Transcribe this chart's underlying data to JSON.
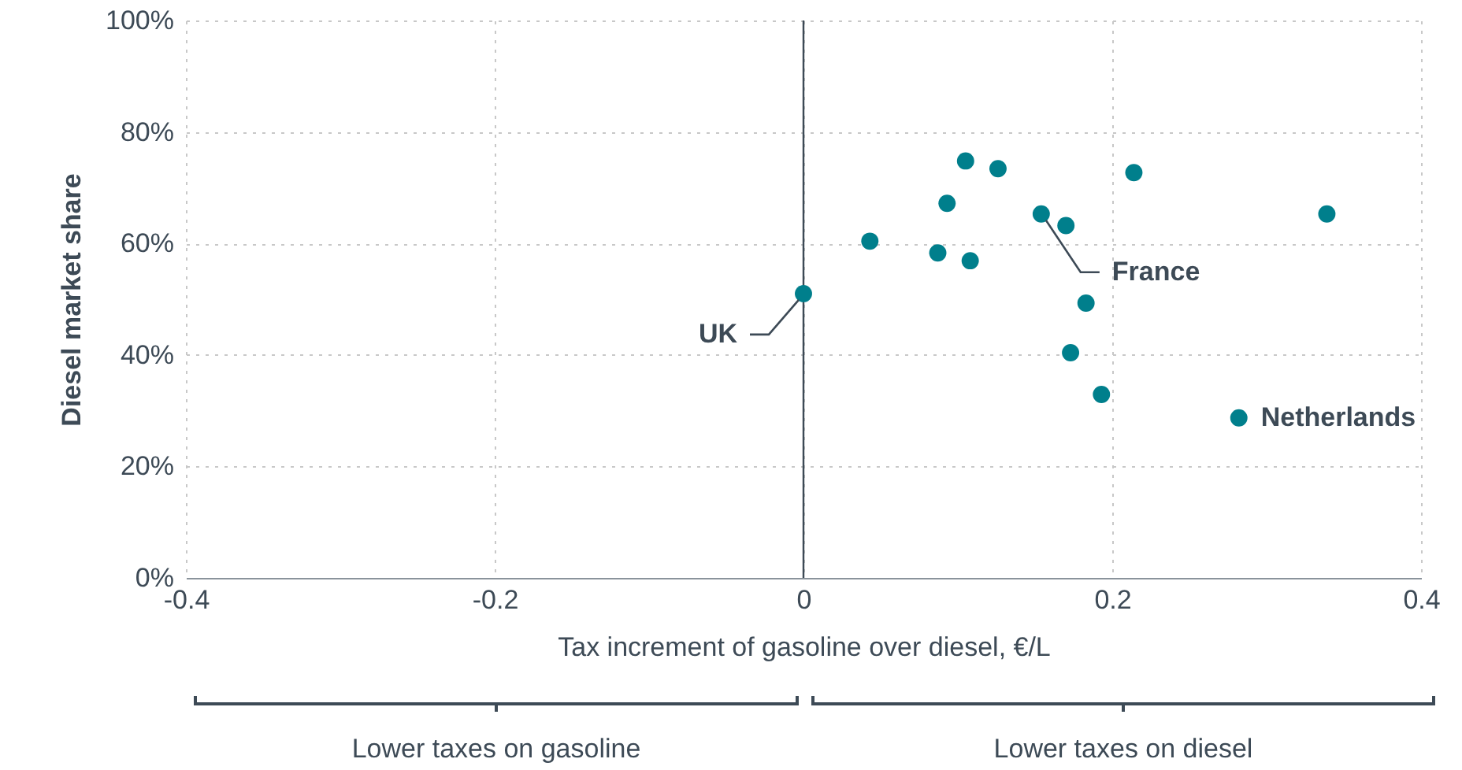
{
  "chart_data": {
    "type": "scatter",
    "xlabel": "Tax increment of gasoline over diesel, €/L",
    "ylabel": "Diesel market share",
    "x": [
      0,
      0.043,
      0.087,
      0.108,
      0.093,
      0.105,
      0.126,
      0.214,
      0.154,
      0.17,
      0.183,
      0.173,
      0.193,
      0.282,
      0.339
    ],
    "series": [
      {
        "color": "#007f8c",
        "values": [
          51,
          60.4,
          58.3,
          56.9,
          67.2,
          74.8,
          73.4,
          72.7,
          65.3,
          63.2,
          49.3,
          40.4,
          32.9,
          28.7,
          65.3
        ]
      }
    ],
    "xlim": [
      -0.4,
      0.4
    ],
    "xticks": [
      -0.4,
      -0.2,
      0,
      0.2,
      0.4
    ],
    "ylim": [
      0,
      100
    ],
    "yticks": [
      {
        "value": 0,
        "label": "0%"
      },
      {
        "value": 20,
        "label": "20%"
      },
      {
        "value": 40,
        "label": "40%"
      },
      {
        "value": 60,
        "label": "60%"
      },
      {
        "value": 80,
        "label": "80%"
      },
      {
        "value": 100,
        "label": "100%"
      }
    ],
    "grid": true,
    "marker": "circle",
    "ref_lines": [
      {
        "axis": "x",
        "value": 0,
        "color": "#3d4a56"
      }
    ],
    "annotations": [
      {
        "text": "UK",
        "x": 0,
        "y": 51
      },
      {
        "text": "France",
        "x": 0.154,
        "y": 65.3
      },
      {
        "text": "Netherlands",
        "x": 0.282,
        "y": 28.7
      },
      "Lower taxes on gasoline",
      "Lower taxes on diesel"
    ]
  }
}
